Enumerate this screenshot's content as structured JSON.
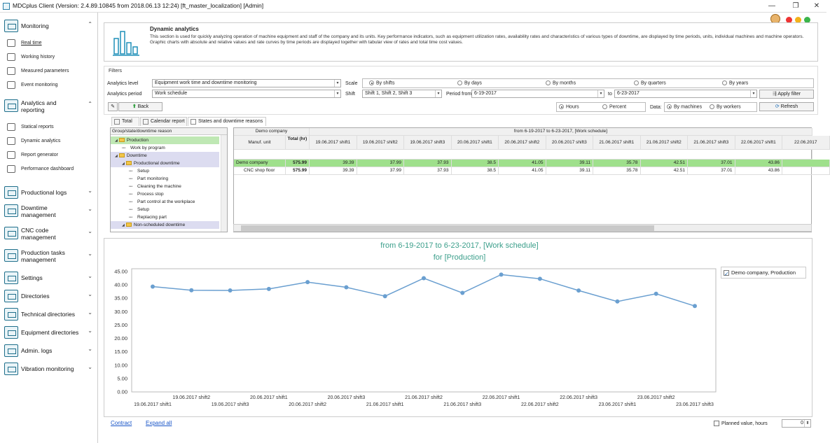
{
  "window": {
    "title": "MDCplus Client (Version: 2.4.89.10845 from 2018.06.13 12:24) [ft_master_localization]  [Admin]",
    "minimize_glyph": "—",
    "restore_glyph": "❐",
    "close_glyph": "✕"
  },
  "sidebar": {
    "monitoring": {
      "label": "Monitoring",
      "items": [
        "Real time",
        "Working history",
        "Measured parameters",
        "Event monitoring"
      ]
    },
    "analytics": {
      "label": "Analytics and reporting",
      "items": [
        "Statical reports",
        "Dynamic analytics",
        "Report generator",
        "Performance dashboard"
      ]
    },
    "groups": [
      {
        "label": "Productional logs"
      },
      {
        "label": "Downtime management"
      },
      {
        "label": "CNC code management"
      },
      {
        "label": "Production tasks management"
      },
      {
        "label": "Settings"
      },
      {
        "label": "Directories"
      },
      {
        "label": "Technical directories"
      },
      {
        "label": "Equipment directories"
      },
      {
        "label": "Admin. logs"
      },
      {
        "label": "Vibration monitoring"
      }
    ],
    "chevron_open": "⌃",
    "chevron_closed": "⌄"
  },
  "banner": {
    "title": "Dynamic analytics",
    "description": "This section is used for quickly analyzing operation of machine equipment and staff of the company and its units. Key performance indicators, such as equipment utilization rates, availability rates and characteristics of various types of downtime, are displayed by time periods, units, individual machines and machine operators. Graphic charts with absolute and relative values and rate curves by time periods are displayed together with tabular view of rates and total time cost values."
  },
  "filters": {
    "title": "Filters",
    "analytics_level_label": "Analytics level",
    "analytics_level_value": "Equipment work time and downtime monitoring",
    "analytics_period_label": "Analytics period",
    "analytics_period_value": "Work schedule",
    "scale_label": "Scale",
    "scale_options": [
      "By shifts",
      "By days",
      "By months",
      "By quarters",
      "By years"
    ],
    "scale_selected": 0,
    "shift_label": "Shift",
    "shift_value": "Shift 1, Shift 2, Shift 3",
    "period_from_label": "Period from",
    "period_from_value": "6-19-2017",
    "period_to_label": "to",
    "period_to_value": "6-23-2017",
    "apply_label": "Apply filter",
    "back_label": "Back",
    "units_options": [
      "Hours",
      "Percent"
    ],
    "units_selected": 0,
    "data_label": "Data:",
    "data_options": [
      "By machines",
      "By workers"
    ],
    "data_selected": 0,
    "refresh_label": "Refresh"
  },
  "tabs": [
    "Total",
    "Calendar report",
    "States and downtime reasons"
  ],
  "active_tab": 2,
  "tree": {
    "header": "Group/state/downtime reason",
    "rows": [
      {
        "label": "Production",
        "level": 0,
        "folder": true,
        "highlight": "green"
      },
      {
        "label": "Work by program",
        "level": 1,
        "folder": false
      },
      {
        "label": "Downtime",
        "level": 0,
        "folder": true,
        "highlight": "lav"
      },
      {
        "label": "Productional downtime",
        "level": 1,
        "folder": true,
        "highlight": "lav"
      },
      {
        "label": "Setup",
        "level": 2,
        "folder": false
      },
      {
        "label": "Part monitoring",
        "level": 2,
        "folder": false
      },
      {
        "label": "Cleaning the machine",
        "level": 2,
        "folder": false
      },
      {
        "label": "Process stop",
        "level": 2,
        "folder": false
      },
      {
        "label": "Part control at the workplace",
        "level": 2,
        "folder": false
      },
      {
        "label": "Setup",
        "level": 2,
        "folder": false
      },
      {
        "label": "Replacing part",
        "level": 2,
        "folder": false
      },
      {
        "label": "Non-scheduled downtime",
        "level": 1,
        "folder": true,
        "highlight": "lav"
      }
    ]
  },
  "grid": {
    "company_header": "Demo company",
    "period_header": "from 6-19-2017 to 6-23-2017, [Work schedule]",
    "unit_header": "Manuf. unit",
    "total_header": "Total (hr)",
    "columns": [
      "19.06.2017 shift1",
      "19.06.2017 shift2",
      "19.06.2017 shift3",
      "20.06.2017 shift1",
      "20.06.2017 shift2",
      "20.06.2017 shift3",
      "21.06.2017 shift1",
      "21.06.2017 shift2",
      "21.06.2017 shift3",
      "22.06.2017 shift1",
      "22.06.2017"
    ],
    "rows": [
      {
        "unit": "Demo company",
        "total": "575.99",
        "values": [
          "39.39",
          "37.99",
          "37.93",
          "38.5",
          "41.05",
          "39.11",
          "35.78",
          "42.51",
          "37.01",
          "43.86",
          ""
        ]
      },
      {
        "unit": "CNC shop floor",
        "total": "575.99",
        "values": [
          "39.39",
          "37.99",
          "37.93",
          "38.5",
          "41.05",
          "39.11",
          "35.78",
          "42.51",
          "37.01",
          "43.86",
          ""
        ]
      }
    ]
  },
  "chart_data": {
    "type": "line",
    "title": "from 6-19-2017 to 6-23-2017, [Work schedule]",
    "subtitle": "for [Production]",
    "x": [
      "19.06.2017 shift1",
      "19.06.2017 shift2",
      "19.06.2017 shift3",
      "20.06.2017 shift1",
      "20.06.2017 shift2",
      "20.06.2017 shift3",
      "21.06.2017 shift1",
      "21.06.2017 shift2",
      "21.06.2017 shift3",
      "22.06.2017 shift1",
      "22.06.2017 shift2",
      "22.06.2017 shift3",
      "23.06.2017 shift1",
      "23.06.2017 shift2",
      "23.06.2017 shift3"
    ],
    "series": [
      {
        "name": "Demo company, Production",
        "values": [
          39.39,
          37.99,
          37.93,
          38.5,
          41.05,
          39.11,
          35.78,
          42.51,
          37.01,
          43.86,
          42.3,
          37.9,
          33.8,
          36.7,
          32.1
        ]
      }
    ],
    "ylim": [
      0,
      45
    ],
    "yticks": [
      "0.00",
      "5.00",
      "10.00",
      "15.00",
      "20.00",
      "25.00",
      "30.00",
      "35.00",
      "40.00",
      "45.00"
    ],
    "grid": false,
    "legend_position": "top-right",
    "line_color": "#6a9fd0"
  },
  "footer": {
    "contract_label": "Contract",
    "expand_label": "Expand all",
    "planned_label": "Planned value, hours",
    "planned_value": "0"
  }
}
